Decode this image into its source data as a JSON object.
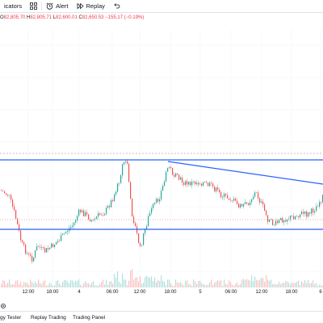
{
  "toolbar": {
    "indicators_label": "icators",
    "alert_label": "Alert",
    "replay_label": "Replay"
  },
  "ohlc": {
    "o_label": "O",
    "o_value": "82,805.70",
    "h_label": "H",
    "h_value": "82,805.71",
    "l_label": "L",
    "l_value": "82,600.01",
    "c_label": "C",
    "c_value": "82,650.53",
    "change": "−155.17 (−0.19%)"
  },
  "time_axis": {
    "labels": [
      "12:00",
      "18:00",
      "4",
      "06:00",
      "12:00",
      "18:00",
      "5",
      "06:00",
      "12:00",
      "18:00",
      "6"
    ]
  },
  "bottom_bar": {
    "strategy_tester": "gy Tester",
    "replay_trading": "Replay Trading",
    "trading_panel": "Trading Panel"
  },
  "colors": {
    "up": "#26a69a",
    "down": "#ef5350",
    "trendline": "#2962ff",
    "grid": "#f0f3fa"
  },
  "icons": {
    "indicators": "templates-grid-icon",
    "alert": "alarm-clock-icon",
    "replay": "replay-icon",
    "undo": "undo-icon",
    "settings": "settings-icon"
  }
}
